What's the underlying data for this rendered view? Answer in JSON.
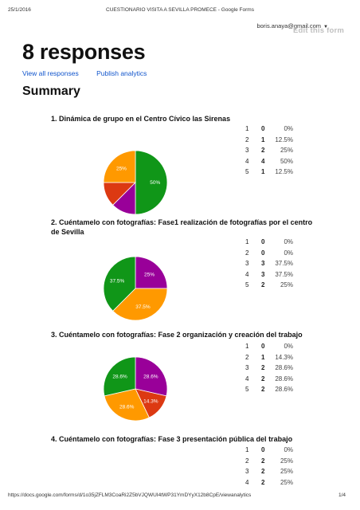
{
  "print_header": {
    "date": "25/1/2016",
    "title": "CUESTIONARIO VISITA A SEVILLA PROMECE - Google Forms"
  },
  "account": {
    "email": "boris.anaya@gmail.com"
  },
  "edit_form_label": "Edit this form",
  "page_title": "8 responses",
  "links": {
    "view_all": "View all responses",
    "publish": "Publish analytics"
  },
  "summary_title": "Summary",
  "colors": {
    "green": "#109618",
    "purple": "#990099",
    "red": "#dc3912",
    "orange": "#ff9900"
  },
  "questions": [
    {
      "title": "1. Dinámica de grupo en el Centro Cívico las Sirenas",
      "counts": [
        {
          "option": "1",
          "count": "0",
          "percent": "0%"
        },
        {
          "option": "2",
          "count": "1",
          "percent": "12.5%"
        },
        {
          "option": "3",
          "count": "2",
          "percent": "25%"
        },
        {
          "option": "4",
          "count": "4",
          "percent": "50%"
        },
        {
          "option": "5",
          "count": "1",
          "percent": "12.5%"
        }
      ]
    },
    {
      "title": "2. Cuéntamelo con fotografías: Fase1 realización de fotografías por el centro de Sevilla",
      "counts": [
        {
          "option": "1",
          "count": "0",
          "percent": "0%"
        },
        {
          "option": "2",
          "count": "0",
          "percent": "0%"
        },
        {
          "option": "3",
          "count": "3",
          "percent": "37.5%"
        },
        {
          "option": "4",
          "count": "3",
          "percent": "37.5%"
        },
        {
          "option": "5",
          "count": "2",
          "percent": "25%"
        }
      ]
    },
    {
      "title": "3. Cuéntamelo con fotografías: Fase 2 organización y creación del trabajo",
      "counts": [
        {
          "option": "1",
          "count": "0",
          "percent": "0%"
        },
        {
          "option": "2",
          "count": "1",
          "percent": "14.3%"
        },
        {
          "option": "3",
          "count": "2",
          "percent": "28.6%"
        },
        {
          "option": "4",
          "count": "2",
          "percent": "28.6%"
        },
        {
          "option": "5",
          "count": "2",
          "percent": "28.6%"
        }
      ]
    },
    {
      "title": "4. Cuéntamelo con fotografías: Fase 3 presentación pública del trabajo",
      "counts": [
        {
          "option": "1",
          "count": "0",
          "percent": "0%"
        },
        {
          "option": "2",
          "count": "2",
          "percent": "25%"
        },
        {
          "option": "3",
          "count": "2",
          "percent": "25%"
        },
        {
          "option": "4",
          "count": "2",
          "percent": "25%"
        }
      ]
    }
  ],
  "chart_data": [
    {
      "type": "pie",
      "categories": [
        "4",
        "5",
        "2",
        "3"
      ],
      "values": [
        50,
        12.5,
        12.5,
        25
      ],
      "colors": [
        "#109618",
        "#990099",
        "#dc3912",
        "#ff9900"
      ],
      "data_labels": [
        "50%",
        "",
        "",
        "25%"
      ]
    },
    {
      "type": "pie",
      "categories": [
        "5",
        "3",
        "4"
      ],
      "values": [
        25,
        37.5,
        37.5
      ],
      "colors": [
        "#990099",
        "#ff9900",
        "#109618"
      ],
      "data_labels": [
        "25%",
        "37.5%",
        "37.5%"
      ]
    },
    {
      "type": "pie",
      "categories": [
        "5",
        "2",
        "3",
        "4"
      ],
      "values": [
        28.6,
        14.3,
        28.6,
        28.6
      ],
      "colors": [
        "#990099",
        "#dc3912",
        "#ff9900",
        "#109618"
      ],
      "data_labels": [
        "28.6%",
        "14.3%",
        "28.6%",
        "28.6%"
      ]
    }
  ],
  "print_footer": {
    "url": "https://docs.google.com/forms/d/1o35jZFLM3CoaRi2Z5bVJQWUI4tWP31YmDYyX12b8CpE/viewanalytics",
    "page": "1/4"
  }
}
